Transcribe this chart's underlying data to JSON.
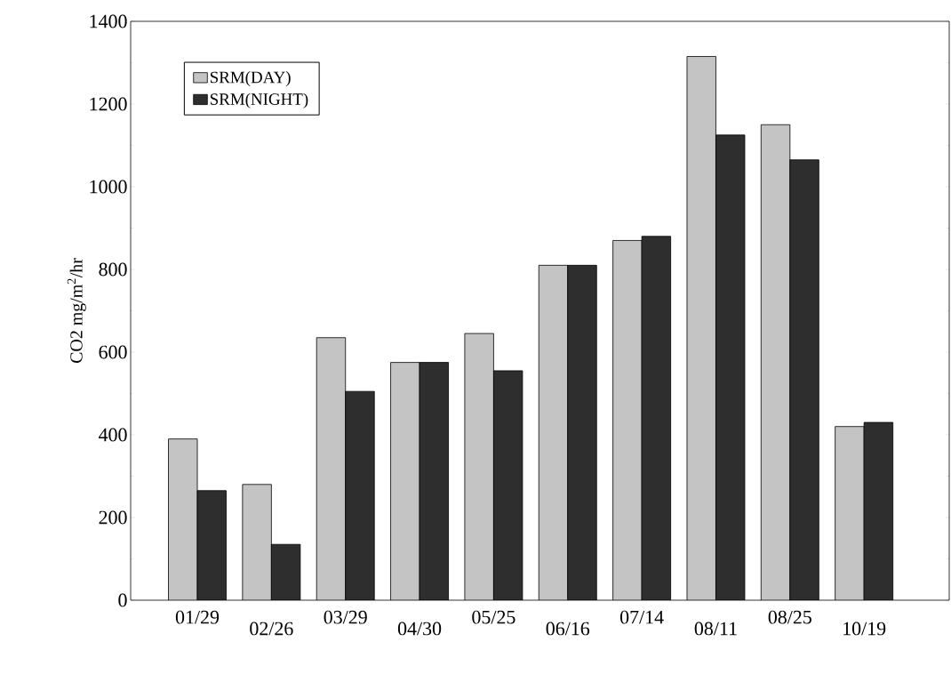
{
  "chart_data": {
    "type": "bar",
    "ylabel": "CO2 mg/m$^{2}$/hr",
    "categories": [
      "01/29",
      "02/26",
      "03/29",
      "04/30",
      "05/25",
      "06/16",
      "07/14",
      "08/11",
      "08/25",
      "10/19"
    ],
    "series": [
      {
        "name": "SRM(DAY)",
        "color": "#c4c4c4",
        "values": [
          390,
          280,
          635,
          575,
          645,
          810,
          870,
          1315,
          1150,
          420
        ]
      },
      {
        "name": "SRM(NIGHT)",
        "color": "#2e2e2e",
        "values": [
          265,
          135,
          505,
          575,
          555,
          810,
          880,
          1125,
          1065,
          430
        ]
      }
    ],
    "ylim": [
      0,
      1400
    ],
    "yticks": [
      0,
      200,
      400,
      600,
      800,
      1000,
      1200,
      1400
    ],
    "legend": "top left",
    "grid": false
  }
}
